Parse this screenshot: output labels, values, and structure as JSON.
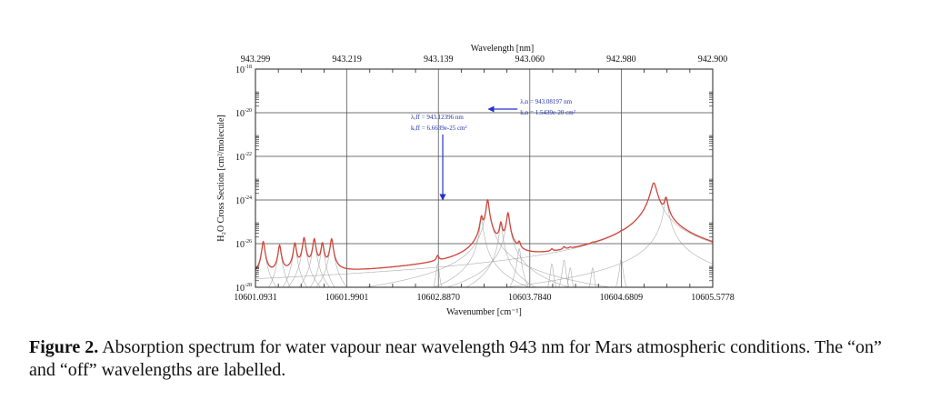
{
  "chart_data": {
    "type": "line",
    "title": "",
    "xlabel": "Wavenumber [cm⁻¹]",
    "x2label": "Wavelength [nm]",
    "ylabel": "H₂O Cross Section [cm²/molecule]",
    "xlim": [
      10601.0931,
      10605.5778
    ],
    "ylim_log10": [
      -28,
      -18
    ],
    "y_scale": "log",
    "grid": true,
    "x_ticks": [
      10601.0931,
      10601.9901,
      10602.887,
      10603.784,
      10604.6809,
      10605.5778
    ],
    "x_tick_labels": [
      "10601.0931",
      "10601.9901",
      "10602.8870",
      "10603.7840",
      "10604.6809",
      "10605.5778"
    ],
    "x2_tick_labels": [
      "943.299",
      "943.219",
      "943.139",
      "943.060",
      "942.980",
      "942.900"
    ],
    "y_ticks_log10": [
      -28,
      -26,
      -24,
      -22,
      -20,
      -18
    ],
    "y_tick_labels": [
      {
        "base": "10",
        "exp": "-28"
      },
      {
        "base": "10",
        "exp": "-26"
      },
      {
        "base": "10",
        "exp": "-24"
      },
      {
        "base": "10",
        "exp": "-22"
      },
      {
        "base": "10",
        "exp": "-20"
      },
      {
        "base": "10",
        "exp": "-18"
      }
    ],
    "continuum_level_log10": -27.4,
    "lines": [
      {
        "nu": 10601.17,
        "s": 1.2e-26,
        "w": 0.012
      },
      {
        "nu": 10601.33,
        "s": 8e-27,
        "w": 0.012
      },
      {
        "nu": 10601.48,
        "s": 1e-26,
        "w": 0.012
      },
      {
        "nu": 10601.57,
        "s": 1.8e-26,
        "w": 0.012
      },
      {
        "nu": 10601.67,
        "s": 1.6e-26,
        "w": 0.012
      },
      {
        "nu": 10601.75,
        "s": 1e-26,
        "w": 0.012
      },
      {
        "nu": 10601.84,
        "s": 1.6e-26,
        "w": 0.012
      },
      {
        "nu": 10602.88,
        "s": 1.2e-27,
        "w": 0.012
      },
      {
        "nu": 10603.31,
        "s": 1.5e-25,
        "w": 0.012
      },
      {
        "nu": 10603.37,
        "s": 1e-24,
        "w": 0.012
      },
      {
        "nu": 10603.5,
        "s": 8e-26,
        "w": 0.012
      },
      {
        "nu": 10603.57,
        "s": 2.5e-25,
        "w": 0.012
      },
      {
        "nu": 10603.68,
        "s": 6e-27,
        "w": 0.012
      },
      {
        "nu": 10604.0,
        "s": 1.2e-27,
        "w": 0.012
      },
      {
        "nu": 10604.12,
        "s": 1.8e-27,
        "w": 0.012
      },
      {
        "nu": 10604.18,
        "s": 8e-28,
        "w": 0.012
      },
      {
        "nu": 10604.4,
        "s": 8e-28,
        "w": 0.012
      },
      {
        "nu": 10604.68,
        "s": 2e-27,
        "w": 0.012
      },
      {
        "nu": 10605.0,
        "s": 6e-24,
        "w": 0.025
      },
      {
        "nu": 10605.12,
        "s": 1.1e-24,
        "w": 0.015
      }
    ],
    "annotations": [
      {
        "label": "off",
        "nu": 10602.93,
        "lines": [
          "λₒff = 943.12396 nm",
          "kₒff = 6.6639e-25 cm²"
        ]
      },
      {
        "label": "on",
        "nu": 10603.36,
        "lines": [
          "λₒn = 943.08197 nm",
          "kₒn = 1.5439e-20 cm²"
        ]
      }
    ]
  },
  "caption": {
    "figure_label": "Figure 2.",
    "text": " Absorption spectrum for water vapour near wavelength 943 nm for Mars atmospheric conditions. The “on” and “off” wavelengths are labelled."
  }
}
